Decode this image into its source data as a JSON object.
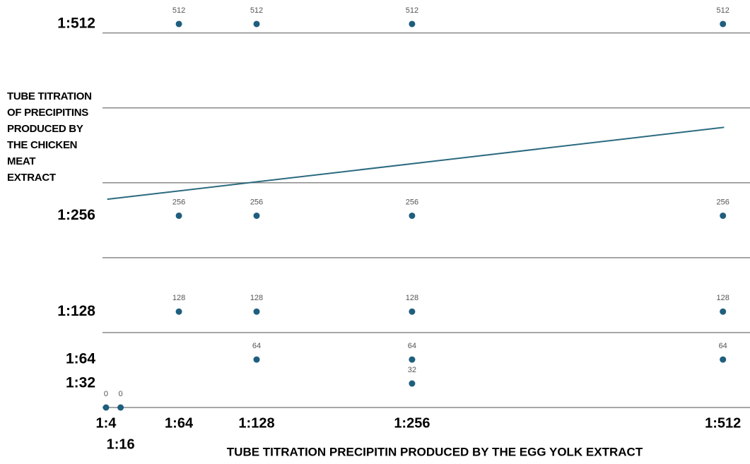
{
  "chart_data": {
    "type": "scatter",
    "xlabel": "TUBE TITRATION PRECIPITIN PRODUCED BY THE EGG YOLK EXTRACT",
    "ylabel": [
      "TUBE TITRATION",
      "OF PRECIPITINS",
      "PRODUCED BY",
      "THE CHICKEN",
      "MEAT",
      "EXTRACT"
    ],
    "xlim": [
      1.1,
      534.3
    ],
    "ylim": [
      0,
      544
    ],
    "xticks": [
      {
        "value": 4,
        "label": "1:4"
      },
      {
        "value": 16,
        "label": "1:16"
      },
      {
        "value": 64,
        "label": "1:64"
      },
      {
        "value": 128,
        "label": "1:128"
      },
      {
        "value": 256,
        "label": "1:256"
      },
      {
        "value": 512,
        "label": "1:512"
      }
    ],
    "yticks": [
      {
        "value": 32,
        "label": "1:32"
      },
      {
        "value": 64,
        "label": "1:64"
      },
      {
        "value": 128,
        "label": "1:128"
      },
      {
        "value": 256,
        "label": "1:256"
      },
      {
        "value": 512,
        "label": "1:512"
      }
    ],
    "grid_values": [
      0,
      100,
      200,
      300,
      400,
      500
    ],
    "series": [
      {
        "color": "#1f5e7e",
        "x": [
          64,
          128,
          256,
          512,
          64,
          128,
          256,
          512,
          64,
          128,
          256,
          512,
          128,
          256,
          512,
          256,
          4,
          16
        ],
        "values": [
          512,
          512,
          512,
          512,
          256,
          256,
          256,
          256,
          128,
          128,
          128,
          128,
          64,
          64,
          64,
          32,
          0,
          0
        ]
      }
    ],
    "trendline": {
      "color": "#2b6a80",
      "x": [
        5,
        513
      ],
      "values": [
        278,
        374
      ]
    }
  }
}
